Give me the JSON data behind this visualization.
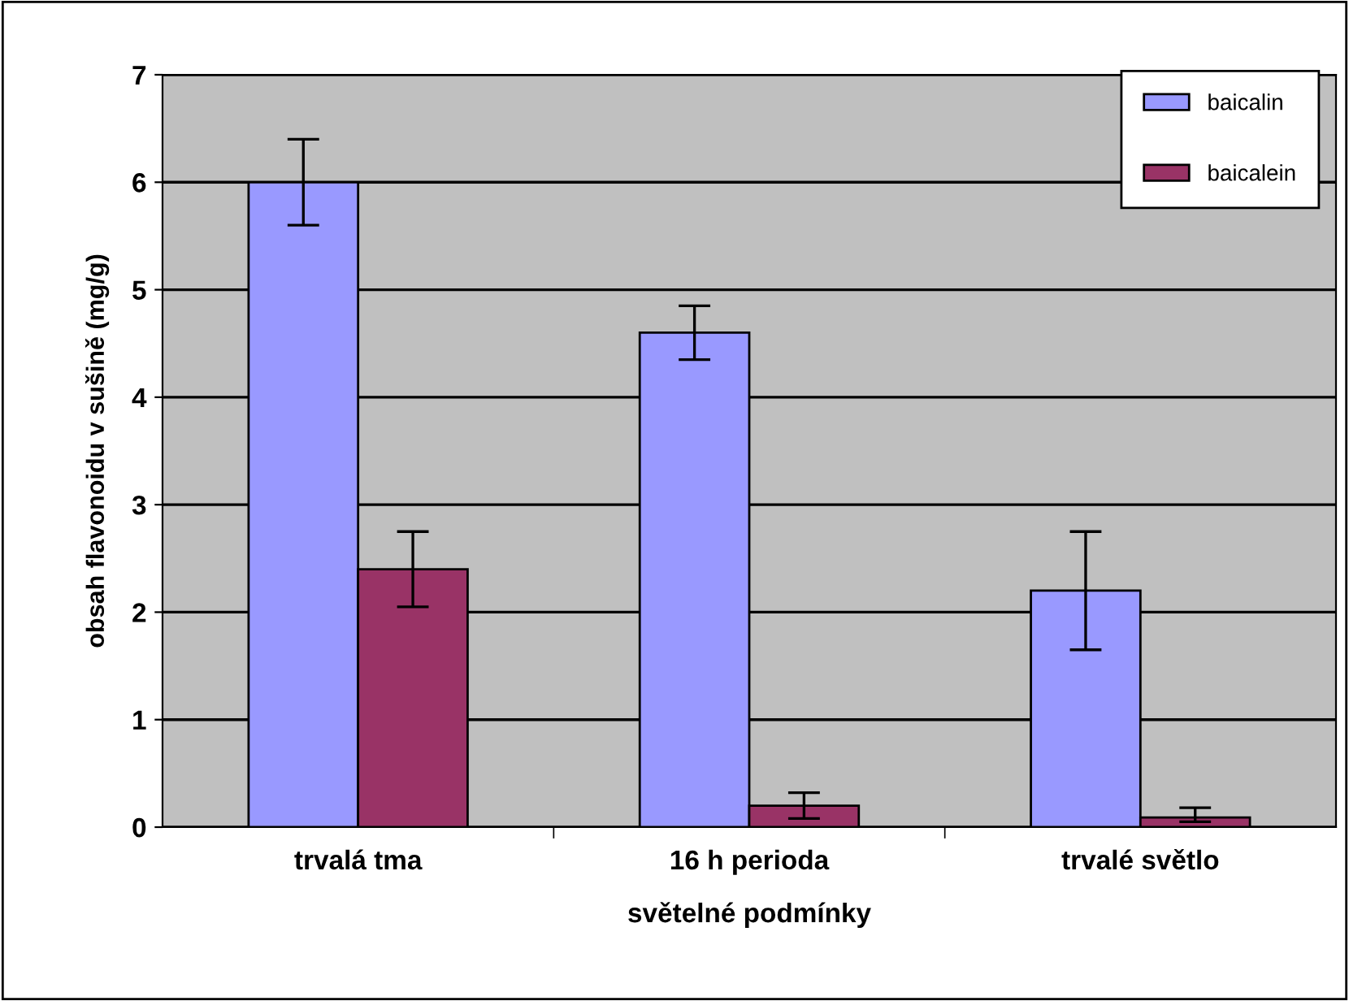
{
  "chart_data": {
    "type": "bar",
    "xlabel": "světelné podmínky",
    "ylabel": "obsah flavonoidu v sušině (mg/g)",
    "categories": [
      "trvalá tma",
      "16 h perioda",
      "trvalé světlo"
    ],
    "series": [
      {
        "name": "baicalin",
        "color": "#9999ff",
        "values": [
          6.0,
          4.6,
          2.2
        ],
        "errors": [
          0.4,
          0.25,
          0.55
        ]
      },
      {
        "name": "baicalein",
        "color": "#993366",
        "values": [
          2.4,
          0.2,
          0.09
        ],
        "errors": [
          0.35,
          0.12,
          [
            0.05,
            0.18
          ]
        ]
      }
    ],
    "ylim": [
      0,
      7
    ],
    "yticks": [
      0,
      1,
      2,
      3,
      4,
      5,
      6,
      7
    ],
    "grid": "y",
    "legend": "top right"
  }
}
